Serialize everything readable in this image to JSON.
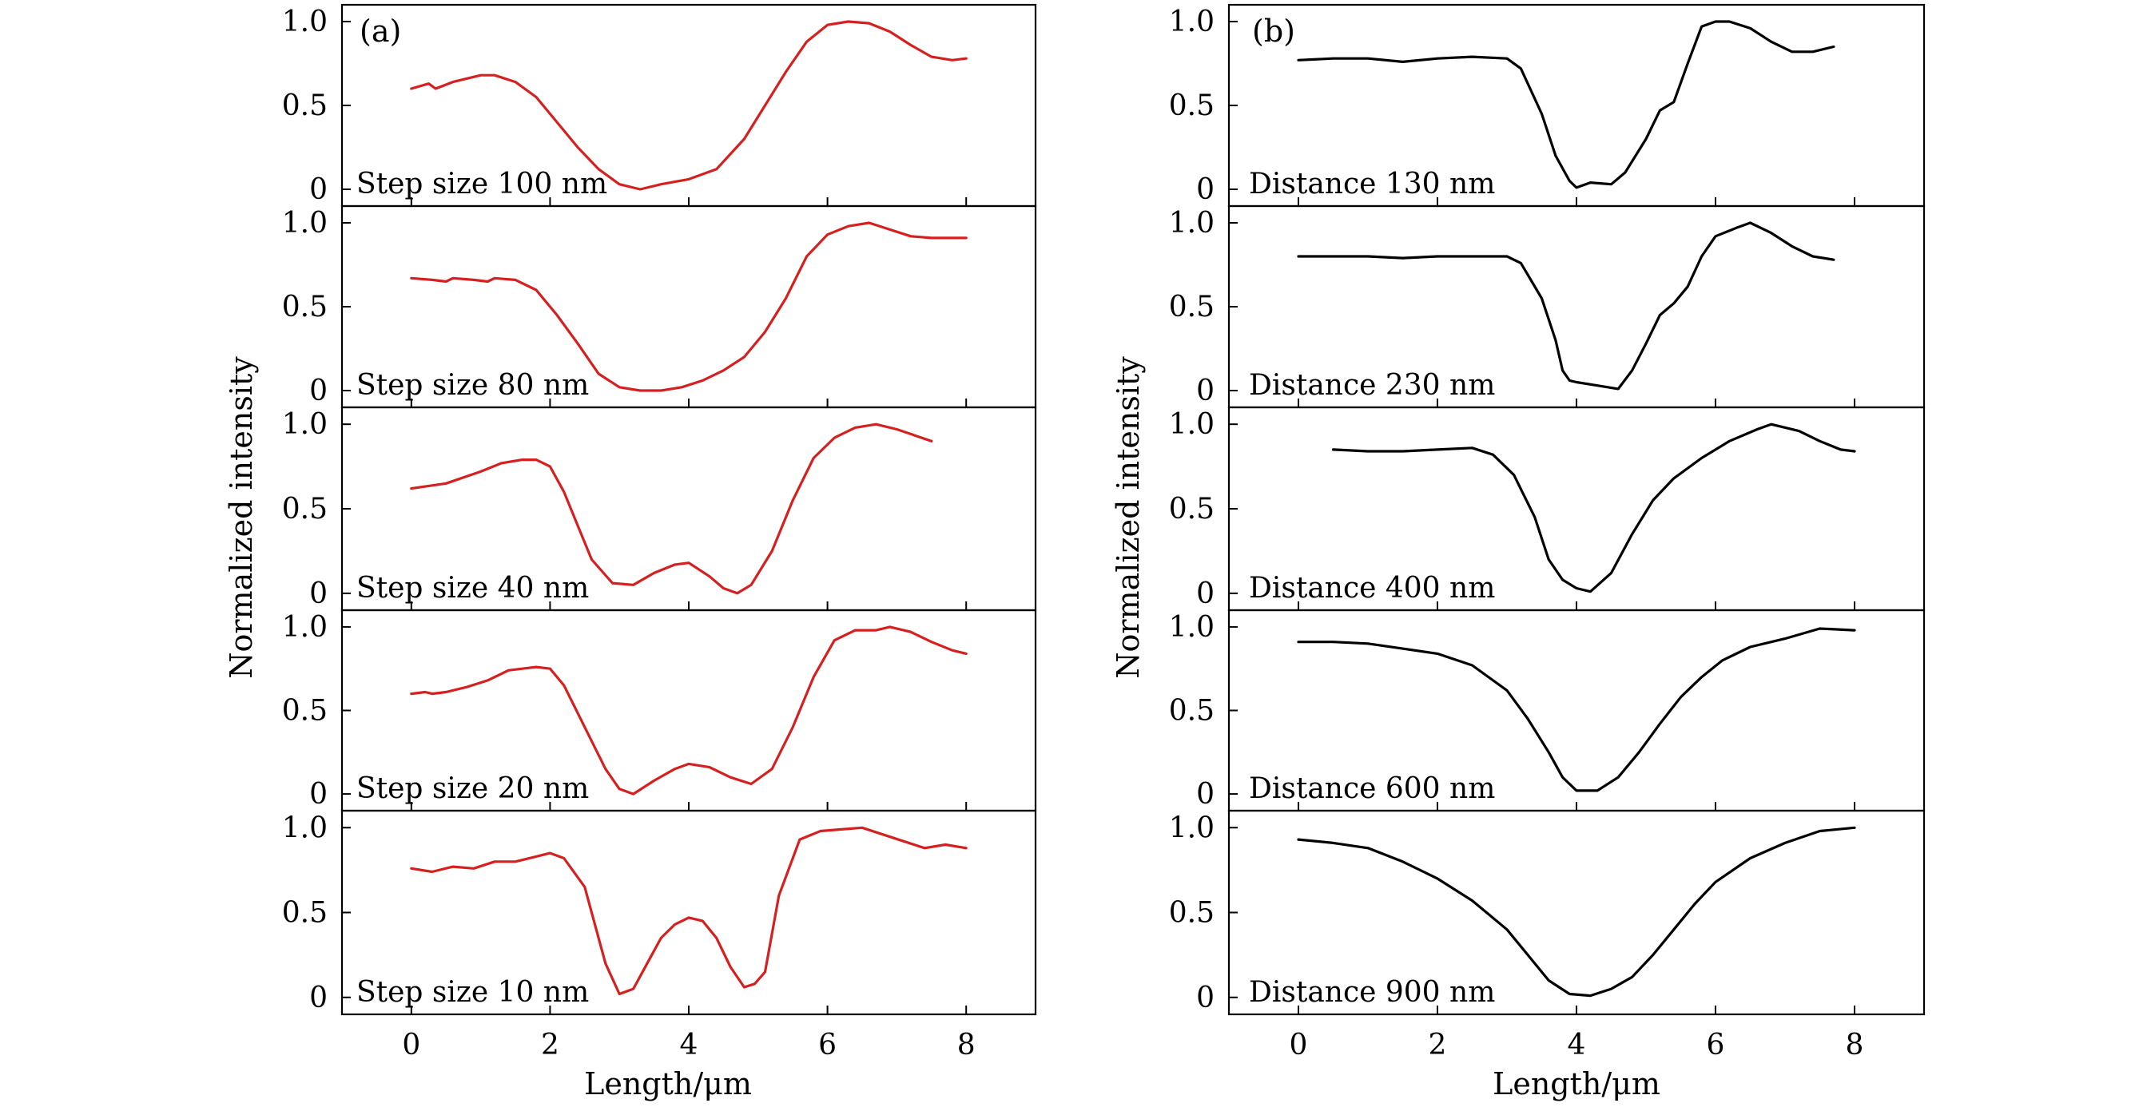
{
  "chart_data": [
    {
      "type": "line",
      "panel_label": "(a)",
      "xlabel": "Length/μm",
      "ylabel": "Normalized intensity",
      "xlim": [
        -1,
        9
      ],
      "ylim": [
        -0.1,
        1.1
      ],
      "xticks": [
        0,
        2,
        4,
        6,
        8
      ],
      "yticks": [
        0,
        0.5,
        1.0
      ],
      "ytick_labels": [
        "0",
        "0.5",
        "1.0"
      ],
      "color": "#d62020",
      "subplots": [
        {
          "label": "Step size 100 nm",
          "x": [
            0,
            0.25,
            0.35,
            0.6,
            1.0,
            1.2,
            1.5,
            1.8,
            2.1,
            2.4,
            2.7,
            3.0,
            3.3,
            3.6,
            4.0,
            4.4,
            4.8,
            5.1,
            5.4,
            5.7,
            6.0,
            6.3,
            6.6,
            6.9,
            7.2,
            7.5,
            7.8,
            8.0
          ],
          "y": [
            0.6,
            0.63,
            0.6,
            0.64,
            0.68,
            0.68,
            0.64,
            0.55,
            0.4,
            0.25,
            0.12,
            0.03,
            0.0,
            0.03,
            0.06,
            0.12,
            0.3,
            0.5,
            0.7,
            0.88,
            0.98,
            1.0,
            0.99,
            0.94,
            0.86,
            0.79,
            0.77,
            0.78
          ]
        },
        {
          "label": "Step size 80 nm",
          "x": [
            0,
            0.3,
            0.5,
            0.6,
            0.9,
            1.1,
            1.2,
            1.5,
            1.8,
            2.1,
            2.4,
            2.7,
            3.0,
            3.3,
            3.6,
            3.9,
            4.2,
            4.5,
            4.8,
            5.1,
            5.4,
            5.7,
            6.0,
            6.3,
            6.6,
            6.9,
            7.2,
            7.5,
            8.0
          ],
          "y": [
            0.67,
            0.66,
            0.65,
            0.67,
            0.66,
            0.65,
            0.67,
            0.66,
            0.6,
            0.45,
            0.28,
            0.1,
            0.02,
            0.0,
            0.0,
            0.02,
            0.06,
            0.12,
            0.2,
            0.35,
            0.55,
            0.8,
            0.93,
            0.98,
            1.0,
            0.96,
            0.92,
            0.91,
            0.91
          ]
        },
        {
          "label": "Step size 40 nm",
          "x": [
            0,
            0.5,
            1.0,
            1.3,
            1.6,
            1.8,
            2.0,
            2.2,
            2.4,
            2.6,
            2.9,
            3.2,
            3.5,
            3.8,
            4.0,
            4.3,
            4.5,
            4.7,
            4.9,
            5.2,
            5.5,
            5.8,
            6.1,
            6.4,
            6.7,
            7.0,
            7.5
          ],
          "y": [
            0.62,
            0.65,
            0.72,
            0.77,
            0.79,
            0.79,
            0.75,
            0.6,
            0.4,
            0.2,
            0.06,
            0.05,
            0.12,
            0.17,
            0.18,
            0.1,
            0.03,
            0.0,
            0.05,
            0.25,
            0.55,
            0.8,
            0.92,
            0.98,
            1.0,
            0.97,
            0.9
          ]
        },
        {
          "label": "Step size 20 nm",
          "x": [
            0,
            0.2,
            0.3,
            0.5,
            0.8,
            1.1,
            1.4,
            1.6,
            1.8,
            2.0,
            2.2,
            2.5,
            2.8,
            3.0,
            3.2,
            3.5,
            3.8,
            4.0,
            4.3,
            4.6,
            4.9,
            5.2,
            5.5,
            5.8,
            6.1,
            6.4,
            6.7,
            6.9,
            7.2,
            7.5,
            7.8,
            8.0
          ],
          "y": [
            0.6,
            0.61,
            0.6,
            0.61,
            0.64,
            0.68,
            0.74,
            0.75,
            0.76,
            0.75,
            0.65,
            0.4,
            0.15,
            0.03,
            0.0,
            0.08,
            0.15,
            0.18,
            0.16,
            0.1,
            0.06,
            0.15,
            0.4,
            0.7,
            0.92,
            0.98,
            0.98,
            1.0,
            0.97,
            0.91,
            0.86,
            0.84
          ]
        },
        {
          "label": "Step size 10 nm",
          "x": [
            0,
            0.3,
            0.6,
            0.9,
            1.2,
            1.5,
            1.8,
            2.0,
            2.2,
            2.5,
            2.8,
            3.0,
            3.2,
            3.4,
            3.6,
            3.8,
            4.0,
            4.2,
            4.4,
            4.6,
            4.8,
            4.95,
            5.1,
            5.3,
            5.6,
            5.9,
            6.2,
            6.5,
            6.8,
            7.1,
            7.4,
            7.7,
            8.0
          ],
          "y": [
            0.76,
            0.74,
            0.77,
            0.76,
            0.8,
            0.8,
            0.83,
            0.85,
            0.82,
            0.65,
            0.2,
            0.02,
            0.05,
            0.2,
            0.35,
            0.43,
            0.47,
            0.45,
            0.35,
            0.18,
            0.06,
            0.08,
            0.15,
            0.6,
            0.93,
            0.98,
            0.99,
            1.0,
            0.96,
            0.92,
            0.88,
            0.9,
            0.88
          ]
        }
      ]
    },
    {
      "type": "line",
      "panel_label": "(b)",
      "xlabel": "Length/μm",
      "ylabel": "Normalized intensity",
      "xlim": [
        -1,
        9
      ],
      "ylim": [
        -0.1,
        1.1
      ],
      "xticks": [
        0,
        2,
        4,
        6,
        8
      ],
      "yticks": [
        0,
        0.5,
        1.0
      ],
      "ytick_labels": [
        "0",
        "0.5",
        "1.0"
      ],
      "color": "#000000",
      "subplots": [
        {
          "label": "Distance 130 nm",
          "x": [
            0,
            0.5,
            1.0,
            1.5,
            2.0,
            2.5,
            3.0,
            3.2,
            3.5,
            3.7,
            3.9,
            4.0,
            4.2,
            4.5,
            4.7,
            5.0,
            5.2,
            5.4,
            5.6,
            5.8,
            6.0,
            6.2,
            6.5,
            6.8,
            7.1,
            7.4,
            7.7
          ],
          "y": [
            0.77,
            0.78,
            0.78,
            0.76,
            0.78,
            0.79,
            0.78,
            0.72,
            0.45,
            0.2,
            0.05,
            0.01,
            0.04,
            0.03,
            0.1,
            0.3,
            0.47,
            0.52,
            0.75,
            0.97,
            1.0,
            1.0,
            0.96,
            0.88,
            0.82,
            0.82,
            0.85
          ]
        },
        {
          "label": "Distance 230 nm",
          "x": [
            0,
            0.5,
            1.0,
            1.5,
            2.0,
            2.5,
            3.0,
            3.2,
            3.5,
            3.7,
            3.8,
            3.9,
            4.0,
            4.3,
            4.6,
            4.8,
            5.0,
            5.2,
            5.4,
            5.6,
            5.8,
            6.0,
            6.3,
            6.5,
            6.8,
            7.1,
            7.4,
            7.7
          ],
          "y": [
            0.8,
            0.8,
            0.8,
            0.79,
            0.8,
            0.8,
            0.8,
            0.76,
            0.55,
            0.3,
            0.12,
            0.06,
            0.05,
            0.03,
            0.01,
            0.12,
            0.28,
            0.45,
            0.52,
            0.62,
            0.8,
            0.92,
            0.97,
            1.0,
            0.94,
            0.86,
            0.8,
            0.78
          ]
        },
        {
          "label": "Distance 400 nm",
          "x": [
            0.5,
            1.0,
            1.5,
            2.0,
            2.5,
            2.8,
            3.1,
            3.4,
            3.6,
            3.8,
            4.0,
            4.2,
            4.5,
            4.8,
            5.1,
            5.4,
            5.8,
            6.2,
            6.6,
            6.8,
            7.2,
            7.5,
            7.8,
            8.0
          ],
          "y": [
            0.85,
            0.84,
            0.84,
            0.85,
            0.86,
            0.82,
            0.7,
            0.45,
            0.2,
            0.08,
            0.03,
            0.01,
            0.12,
            0.35,
            0.55,
            0.68,
            0.8,
            0.9,
            0.97,
            1.0,
            0.96,
            0.9,
            0.85,
            0.84
          ]
        },
        {
          "label": "Distance 600 nm",
          "x": [
            0,
            0.5,
            1.0,
            1.5,
            2.0,
            2.5,
            3.0,
            3.3,
            3.6,
            3.8,
            4.0,
            4.3,
            4.6,
            4.9,
            5.2,
            5.5,
            5.8,
            6.1,
            6.5,
            7.0,
            7.5,
            8.0
          ],
          "y": [
            0.91,
            0.91,
            0.9,
            0.87,
            0.84,
            0.77,
            0.62,
            0.45,
            0.25,
            0.1,
            0.02,
            0.02,
            0.1,
            0.25,
            0.42,
            0.58,
            0.7,
            0.8,
            0.88,
            0.93,
            0.99,
            0.98
          ]
        },
        {
          "label": "Distance 900 nm",
          "x": [
            0,
            0.5,
            1.0,
            1.5,
            2.0,
            2.5,
            3.0,
            3.3,
            3.6,
            3.9,
            4.2,
            4.5,
            4.8,
            5.1,
            5.4,
            5.7,
            6.0,
            6.5,
            7.0,
            7.5,
            8.0
          ],
          "y": [
            0.93,
            0.91,
            0.88,
            0.8,
            0.7,
            0.57,
            0.4,
            0.25,
            0.1,
            0.02,
            0.01,
            0.05,
            0.12,
            0.25,
            0.4,
            0.55,
            0.68,
            0.82,
            0.91,
            0.98,
            1.0
          ]
        }
      ]
    }
  ]
}
